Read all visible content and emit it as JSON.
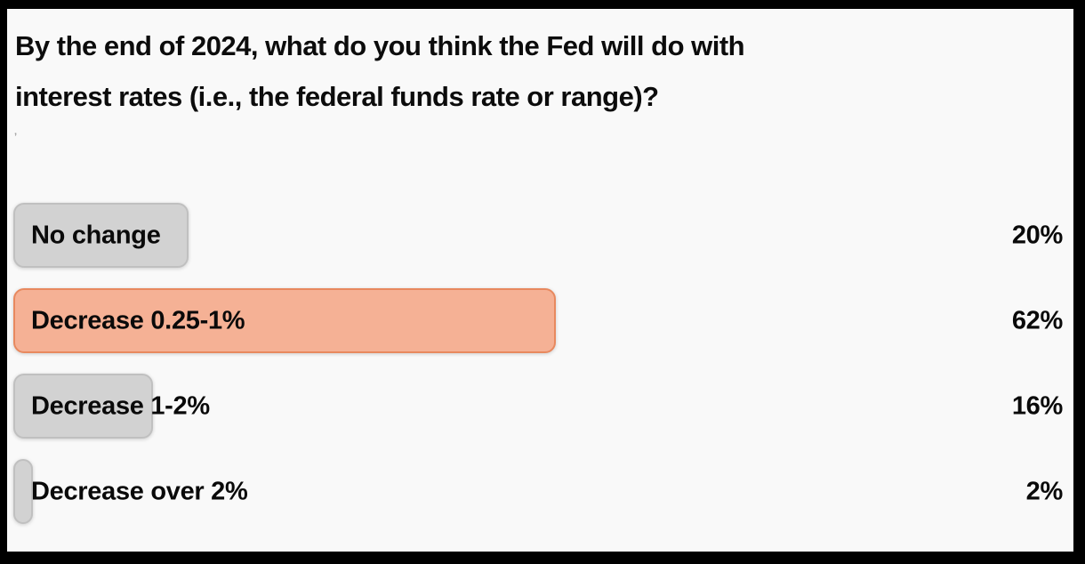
{
  "question": {
    "full_text": "By the end of 2024, what do you think the Fed will do with interest rates (i.e., the federal funds rate or range)?",
    "lines": [
      "By the end of 2024, what do you think the Fed will do with",
      "interest rates (i.e., the federal funds rate or range)?"
    ]
  },
  "stray_mark": "’",
  "options": [
    {
      "label": "No change",
      "value": 20,
      "percent_label": "20%",
      "highlighted": false
    },
    {
      "label": "Decrease 0.25-1%",
      "value": 62,
      "percent_label": "62%",
      "highlighted": true
    },
    {
      "label": "Decrease 1-2%",
      "value": 16,
      "percent_label": "16%",
      "highlighted": false
    },
    {
      "label": "Decrease over 2%",
      "value": 2,
      "percent_label": "2%",
      "highlighted": false
    }
  ],
  "colors": {
    "background": "#f9f9f9",
    "frame": "#000000",
    "bar_fill": "#d2d2d2",
    "bar_border": "#c0c0c0",
    "highlight_fill": "#f5b195",
    "highlight_border": "#e8895f",
    "text": "#0a0a0a"
  },
  "chart_data": {
    "type": "bar",
    "orientation": "horizontal",
    "title": "By the end of 2024, what do you think the Fed will do with interest rates (i.e., the federal funds rate or range)?",
    "categories": [
      "No change",
      "Decrease 0.25-1%",
      "Decrease 1-2%",
      "Decrease over 2%"
    ],
    "values": [
      20,
      62,
      16,
      2
    ],
    "value_labels": [
      "20%",
      "62%",
      "16%",
      "2%"
    ],
    "unit": "%",
    "xlim": [
      0,
      100
    ],
    "grid": false,
    "legend": false,
    "highlighted_category": "Decrease 0.25-1%",
    "bar_colors": [
      "#d2d2d2",
      "#f5b195",
      "#d2d2d2",
      "#d2d2d2"
    ]
  }
}
